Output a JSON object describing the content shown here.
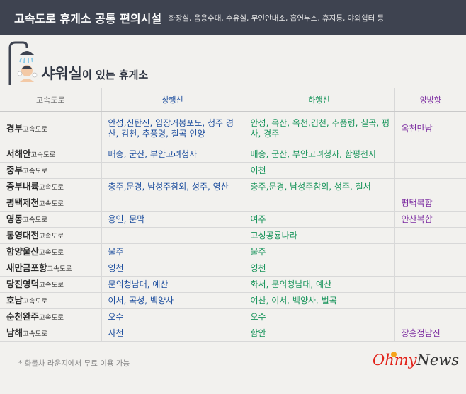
{
  "header": {
    "title": "고속도로 휴게소 공통 편의시설",
    "subtitle": "화장실, 음용수대, 수유실, 무인안내소, 흡연부스, 휴지통, 야외쉼터 등"
  },
  "section": {
    "title_main": "샤워실",
    "title_rest": "이 있는 휴게소",
    "icon": "shower-person-icon"
  },
  "table": {
    "headers": [
      "고속도로",
      "상행선",
      "하행선",
      "양방향"
    ],
    "road_suffix": "고속도로",
    "rows": [
      {
        "road": "경부",
        "up": "안성,신탄진, 입장거봉포도, 청주 경산, 김천, 추풍령, 칠곡 언양",
        "down": "안성, 옥산, 옥천,김천, 추풍령, 칠곡, 평사, 경주",
        "both": "옥천만남"
      },
      {
        "road": "서해안",
        "up": "매송, 군산, 부안고려청자",
        "down": "매송, 군산, 부안고려청자, 함평천지",
        "both": ""
      },
      {
        "road": "중부",
        "up": "",
        "down": "이천",
        "both": ""
      },
      {
        "road": "중부내륙",
        "up": "충주,문경, 남성주참외, 성주, 영산",
        "down": "충주,문경, 남성주참외, 성주, 칠서",
        "both": ""
      },
      {
        "road": "평택제천",
        "up": "",
        "down": "",
        "both": "평택복합"
      },
      {
        "road": "영동",
        "up": "용인, 문막",
        "down": "여주",
        "both": "안산복합"
      },
      {
        "road": "통영대전",
        "up": "",
        "down": "고성공룡나라",
        "both": ""
      },
      {
        "road": "함양울산",
        "up": "울주",
        "down": "울주",
        "both": ""
      },
      {
        "road": "새만금포항",
        "up": "영천",
        "down": "영천",
        "both": ""
      },
      {
        "road": "당진영덕",
        "up": "문의청남대, 예산",
        "down": "화서, 문의청남대, 예산",
        "both": ""
      },
      {
        "road": "호남",
        "up": "이서, 곡성, 백양사",
        "down": "여산, 이서, 백양사, 벌곡",
        "both": ""
      },
      {
        "road": "순천완주",
        "up": "오수",
        "down": "오수",
        "both": ""
      },
      {
        "road": "남해",
        "up": "사천",
        "down": "함안",
        "both": "장흥정남진"
      }
    ]
  },
  "footnote": "* 화물차 라운지에서 무료 이용 가능",
  "logo": {
    "part1": "Ohmy",
    "part2": "News"
  },
  "colors": {
    "header_bg": "#3e4350",
    "up": "#1d4e9e",
    "down": "#17945a",
    "both": "#7b2aa0",
    "logo_red": "#e2231a"
  }
}
